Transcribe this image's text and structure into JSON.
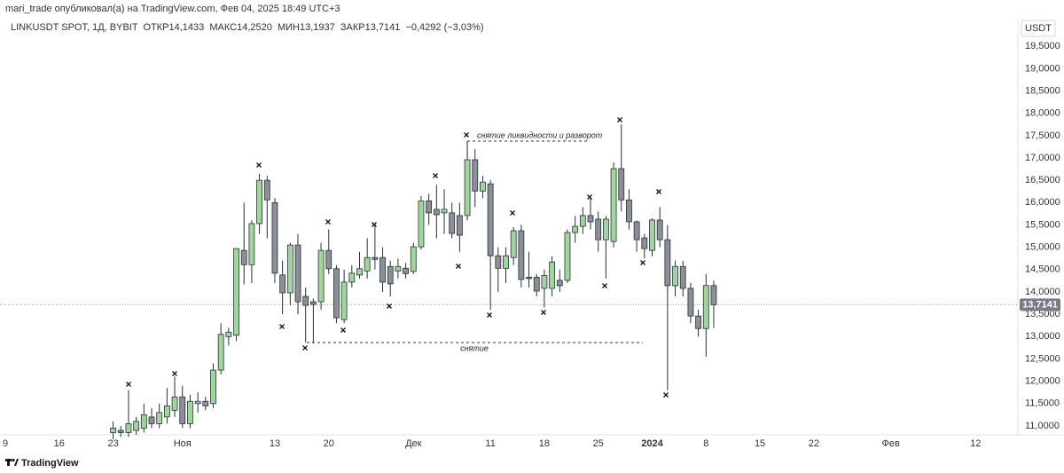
{
  "header": "mari_trade опубликовал(а) на TradingView.com, Фев 04, 2025 18:49 UTC+3",
  "footer": "TradingView",
  "chart_data": {
    "type": "candlestick",
    "title": "LINKUSDT SPOT, 1Д, BYBIT  ОТКР14,1433  МАКС14,2520  МИН13,1937  ЗАКР13,7141  −0,4292 (−3,03%)",
    "currency": "USDT",
    "up_color": "#9fd69b",
    "down_color": "#8d8f96",
    "grid": false,
    "categories": [
      "9",
      null,
      null,
      null,
      null,
      null,
      null,
      "16",
      null,
      null,
      null,
      null,
      null,
      null,
      "23",
      null,
      null,
      null,
      null,
      null,
      null,
      null,
      null,
      "Ноя",
      null,
      null,
      null,
      null,
      null,
      null,
      null,
      null,
      null,
      null,
      null,
      "13",
      null,
      null,
      null,
      null,
      null,
      null,
      "20",
      null,
      null,
      null,
      null,
      null,
      null,
      null,
      null,
      null,
      null,
      "Дек",
      null,
      null,
      null,
      null,
      null,
      null,
      null,
      null,
      null,
      "11",
      null,
      null,
      null,
      null,
      null,
      null,
      "18",
      null,
      null,
      null,
      null,
      null,
      null,
      "25",
      null,
      null,
      null,
      null,
      null,
      null,
      "2024",
      null,
      null,
      null,
      null,
      null,
      null,
      "8",
      null,
      null,
      null,
      null,
      null,
      null,
      "15",
      null,
      null,
      null,
      null,
      null,
      null,
      "22",
      null,
      null,
      null,
      null,
      null,
      null,
      null,
      null,
      null,
      "Фев",
      null,
      null,
      null,
      null,
      null,
      null,
      null,
      null,
      null,
      null,
      "12",
      null,
      null,
      null,
      null,
      null
    ],
    "open": [
      null,
      null,
      null,
      null,
      null,
      null,
      null,
      null,
      null,
      null,
      null,
      null,
      null,
      null,
      10.85,
      10.9,
      10.85,
      10.9,
      10.95,
      11.2,
      11.05,
      11.2,
      11.35,
      11.65,
      11.05,
      11.5,
      11.55,
      11.5,
      12.25,
      13.0,
      13.03,
      14.93,
      14.61,
      15.53,
      16.5,
      16.0,
      14.38,
      13.98,
      15.05,
      13.9,
      13.78,
      13.78,
      14.93,
      14.52,
      13.38,
      14.22,
      14.38,
      14.47,
      14.77,
      14.77,
      14.57,
      14.47,
      14.53,
      14.46,
      15.01,
      16.04,
      15.85,
      15.77,
      15.77,
      15.71,
      15.71,
      16.96,
      16.26,
      16.42,
      14.81,
      14.53,
      14.77,
      15.37,
      14.33,
      14.33,
      14.08,
      14.08,
      14.26,
      14.26,
      15.33,
      15.47,
      15.71,
      15.63,
      15.17,
      15.13,
      16.76,
      16.06,
      15.57,
      15.21,
      14.93,
      15.61,
      15.17,
      14.14,
      14.57,
      14.08,
      13.46,
      13.18,
      14.1433,
      null,
      null,
      null,
      null,
      null,
      null,
      null,
      null,
      null,
      null,
      null,
      null,
      null,
      null,
      null,
      null,
      null,
      null,
      null,
      null,
      null,
      null,
      null,
      null,
      null,
      null,
      null,
      null,
      null,
      null,
      null,
      null,
      null,
      null,
      null,
      null,
      null,
      null,
      null
    ],
    "high": [
      null,
      null,
      null,
      null,
      null,
      null,
      null,
      null,
      null,
      null,
      null,
      null,
      null,
      null,
      11.1,
      11.0,
      11.8,
      11.2,
      11.5,
      11.4,
      11.5,
      11.85,
      12.1,
      11.9,
      11.7,
      11.75,
      11.65,
      12.4,
      13.3,
      13.2,
      14.98,
      16.0,
      15.6,
      16.65,
      16.6,
      16.1,
      14.7,
      15.1,
      15.3,
      14.1,
      13.85,
      15.1,
      15.4,
      14.6,
      14.5,
      14.6,
      14.9,
      15.2,
      15.53,
      15.0,
      14.7,
      14.75,
      14.65,
      15.1,
      16.15,
      16.2,
      16.4,
      16.3,
      16.0,
      16.0,
      17.36,
      17.2,
      16.6,
      16.5,
      15.0,
      15.0,
      15.45,
      15.5,
      14.9,
      14.4,
      14.5,
      14.8,
      14.5,
      15.4,
      15.7,
      15.9,
      16.1,
      15.8,
      15.7,
      16.9,
      17.75,
      16.3,
      15.6,
      15.3,
      15.65,
      15.9,
      15.5,
      14.7,
      14.7,
      14.2,
      13.6,
      14.4,
      14.252,
      null,
      null,
      null,
      null,
      null,
      null,
      null,
      null,
      null,
      null,
      null,
      null,
      null,
      null,
      null,
      null,
      null,
      null,
      null,
      null,
      null,
      null,
      null,
      null,
      null,
      null,
      null,
      null,
      null,
      null,
      null,
      null,
      null,
      null,
      null,
      null,
      null,
      null,
      null
    ],
    "low": [
      null,
      null,
      null,
      null,
      null,
      null,
      null,
      null,
      null,
      null,
      null,
      null,
      null,
      null,
      10.7,
      10.75,
      10.75,
      10.8,
      10.85,
      10.95,
      10.95,
      11.05,
      11.2,
      10.95,
      10.95,
      11.3,
      11.35,
      11.4,
      12.15,
      12.8,
      12.9,
      14.17,
      14.2,
      15.3,
      15.2,
      14.2,
      13.5,
      13.7,
      13.5,
      12.87,
      12.85,
      13.6,
      14.4,
      13.3,
      13.3,
      14.1,
      14.3,
      14.3,
      14.5,
      14.0,
      13.9,
      14.3,
      14.3,
      14.4,
      14.95,
      15.5,
      15.2,
      15.3,
      15.2,
      14.9,
      15.6,
      15.9,
      16.1,
      13.6,
      14.0,
      14.2,
      14.6,
      14.1,
      14.1,
      13.9,
      13.65,
      13.9,
      14.0,
      14.2,
      15.1,
      15.3,
      15.4,
      14.9,
      14.3,
      15.0,
      15.8,
      15.4,
      14.9,
      14.75,
      14.8,
      15.0,
      11.8,
      13.9,
      13.9,
      13.3,
      13.0,
      12.55,
      13.1937,
      null,
      null,
      null,
      null,
      null,
      null,
      null,
      null,
      null,
      null,
      null,
      null,
      null,
      null,
      null,
      null,
      null,
      null,
      null,
      null,
      null,
      null,
      null,
      null,
      null,
      null,
      null,
      null,
      null,
      null,
      null,
      null,
      null,
      null,
      null,
      null,
      null,
      null,
      null
    ],
    "close": [
      null,
      null,
      null,
      null,
      null,
      null,
      null,
      null,
      null,
      null,
      null,
      null,
      null,
      null,
      10.95,
      10.85,
      11.05,
      11.1,
      11.25,
      11.05,
      11.3,
      11.45,
      11.65,
      11.05,
      11.55,
      11.55,
      11.45,
      12.25,
      13.05,
      13.1,
      14.97,
      14.61,
      15.53,
      16.5,
      16.06,
      14.42,
      13.98,
      15.05,
      13.78,
      13.7,
      13.72,
      14.93,
      14.52,
      13.42,
      14.22,
      14.42,
      14.52,
      14.77,
      14.73,
      14.22,
      14.18,
      14.57,
      14.41,
      15.01,
      16.04,
      15.77,
      15.73,
      15.85,
      15.31,
      15.27,
      16.96,
      16.26,
      16.46,
      14.81,
      14.53,
      14.81,
      15.37,
      14.28,
      14.3,
      14.02,
      14.37,
      14.67,
      14.14,
      15.33,
      15.47,
      15.71,
      15.57,
      15.17,
      15.63,
      16.76,
      16.06,
      15.57,
      15.17,
      14.97,
      15.61,
      15.17,
      14.14,
      14.57,
      14.08,
      13.46,
      13.18,
      14.1433,
      13.7141,
      null,
      null,
      null,
      null,
      null,
      null,
      null,
      null,
      null,
      null,
      null,
      null,
      null,
      null,
      null,
      null,
      null,
      null,
      null,
      null,
      null,
      null,
      null,
      null,
      null,
      null,
      null,
      null,
      null,
      null,
      null,
      null,
      null,
      null,
      null,
      null,
      null,
      null,
      null
    ],
    "ylim": [
      10.8,
      20.14
    ],
    "yticks": [
      {
        "value": 11,
        "label": "11,0000"
      },
      {
        "value": 11.5,
        "label": "11,5000"
      },
      {
        "value": 12,
        "label": "12,0000"
      },
      {
        "value": 12.5,
        "label": "12,5000"
      },
      {
        "value": 13,
        "label": "13,0000"
      },
      {
        "value": 13.5,
        "label": "13,5000"
      },
      {
        "value": 14,
        "label": "14,0000"
      },
      {
        "value": 14.5,
        "label": "14,5000"
      },
      {
        "value": 15,
        "label": "15,0000"
      },
      {
        "value": 15.5,
        "label": "15,5000"
      },
      {
        "value": 16,
        "label": "16,0000"
      },
      {
        "value": 16.5,
        "label": "16,5000"
      },
      {
        "value": 17,
        "label": "17,0000"
      },
      {
        "value": 17.5,
        "label": "17,5000"
      },
      {
        "value": 18,
        "label": "18,0000"
      },
      {
        "value": 18.5,
        "label": "18,5000"
      },
      {
        "value": 19,
        "label": "19,0000"
      },
      {
        "value": 19.5,
        "label": "19,5000"
      }
    ],
    "last_price": {
      "value": 13.7141,
      "label": "13,7141"
    },
    "annotations": [
      "снятие ликвидности и разворот",
      "снятие"
    ]
  }
}
